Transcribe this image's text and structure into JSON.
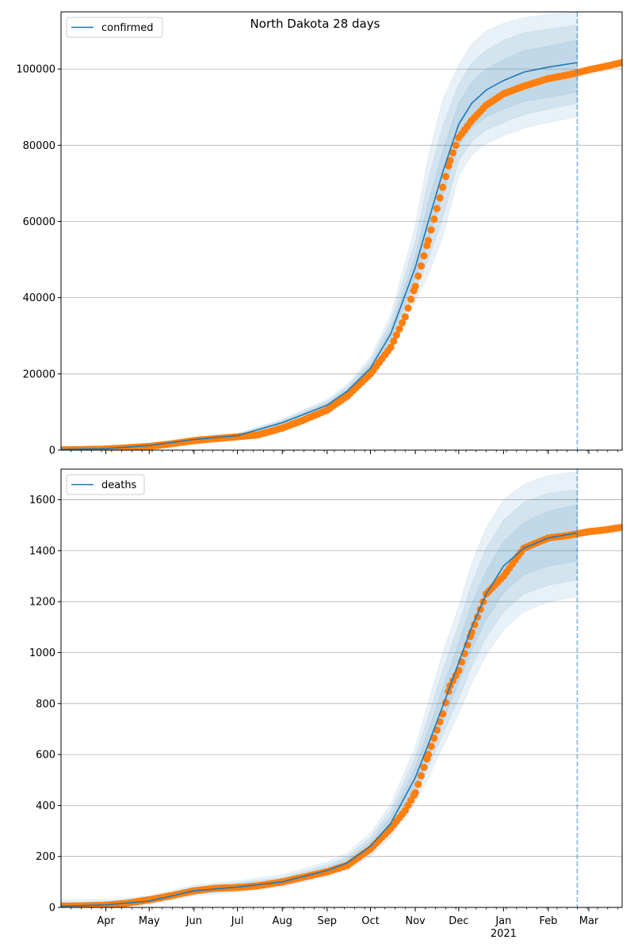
{
  "figure": {
    "title": "North Dakota 28 days"
  },
  "colors": {
    "model_line": "#1f77b4",
    "observed_points": "#ff7f0e",
    "band": "#1f77b4",
    "forecast_marker": "#1f77b4",
    "grid": "#b0b0b0"
  },
  "chart_data": [
    {
      "type": "line",
      "legend": [
        "confirmed"
      ],
      "legend_position": "upper-left",
      "grid": "y",
      "xlim": [
        "2020-03-01",
        "2021-03-24"
      ],
      "ylim": [
        0,
        115000
      ],
      "yticks": [
        0,
        20000,
        40000,
        60000,
        80000,
        100000
      ],
      "ytick_labels": [
        "0",
        "20000",
        "40000",
        "60000",
        "80000",
        "100000"
      ],
      "forecast_start": "2021-02-21",
      "series": [
        {
          "name": "confirmed",
          "kind": "model",
          "x": [
            "2020-03-01",
            "2020-04-01",
            "2020-05-01",
            "2020-06-01",
            "2020-07-01",
            "2020-08-01",
            "2020-09-01",
            "2020-09-15",
            "2020-10-01",
            "2020-10-15",
            "2020-11-01",
            "2020-11-10",
            "2020-11-20",
            "2020-12-01",
            "2020-12-10",
            "2020-12-20",
            "2021-01-01",
            "2021-01-15",
            "2021-02-01",
            "2021-02-21"
          ],
          "y": [
            200,
            400,
            1200,
            2800,
            3800,
            7200,
            11800,
            15500,
            21500,
            30500,
            48000,
            60000,
            73000,
            85500,
            91000,
            94500,
            97000,
            99200,
            100500,
            101700
          ],
          "bands": {
            "inner": {
              "lower": [
                150,
                350,
                1100,
                2600,
                3600,
                6900,
                11300,
                14900,
                20600,
                29000,
                45000,
                55000,
                67000,
                80000,
                84500,
                87500,
                89500,
                91500,
                92500,
                94000
              ],
              "upper": [
                250,
                450,
                1300,
                3000,
                4000,
                7500,
                12300,
                16100,
                22500,
                32000,
                51000,
                65000,
                78500,
                91000,
                96500,
                100000,
                102500,
                104800,
                106000,
                107600
              ]
            },
            "middle": {
              "lower": [
                100,
                300,
                1000,
                2400,
                3400,
                6600,
                10800,
                14300,
                19800,
                27500,
                42000,
                50000,
                61000,
                76000,
                81000,
                84000,
                86000,
                88000,
                89500,
                91000
              ],
              "upper": [
                300,
                500,
                1400,
                3200,
                4200,
                7800,
                12800,
                16700,
                23400,
                33800,
                55000,
                71000,
                85000,
                96000,
                101500,
                105000,
                107500,
                109500,
                110500,
                111500
              ]
            },
            "outer": {
              "lower": [
                50,
                250,
                900,
                2200,
                3200,
                6300,
                10300,
                13700,
                19000,
                26000,
                39000,
                46000,
                56000,
                72000,
                77500,
                80500,
                82500,
                84500,
                86000,
                87500
              ],
              "upper": [
                400,
                600,
                1500,
                3400,
                4400,
                8100,
                13300,
                17300,
                24400,
                35500,
                59000,
                77000,
                92000,
                101000,
                106500,
                110000,
                112000,
                113500,
                114300,
                115000
              ]
            }
          }
        },
        {
          "name": "",
          "kind": "observed",
          "x": [
            "2020-03-01",
            "2020-03-15",
            "2020-04-01",
            "2020-04-15",
            "2020-05-01",
            "2020-05-15",
            "2020-06-01",
            "2020-06-15",
            "2020-07-01",
            "2020-07-15",
            "2020-08-01",
            "2020-08-15",
            "2020-09-01",
            "2020-09-15",
            "2020-10-01",
            "2020-10-15",
            "2020-10-25",
            "2020-11-01",
            "2020-11-10",
            "2020-11-20",
            "2020-11-25",
            "2020-12-01",
            "2020-12-10",
            "2020-12-20",
            "2021-01-01",
            "2021-01-15",
            "2021-02-01",
            "2021-02-15",
            "2021-03-01",
            "2021-03-10",
            "2021-03-24"
          ],
          "y": [
            100,
            150,
            300,
            600,
            1000,
            1600,
            2500,
            3000,
            3500,
            4000,
            5800,
            7800,
            10500,
            14200,
            20000,
            27000,
            35000,
            43000,
            55000,
            69000,
            76000,
            82000,
            86500,
            90500,
            93500,
            95500,
            97500,
            98500,
            99800,
            100500,
            101700
          ]
        }
      ]
    },
    {
      "type": "line",
      "legend": [
        "deaths"
      ],
      "legend_position": "upper-left",
      "grid": "y",
      "xlim": [
        "2020-03-01",
        "2021-03-24"
      ],
      "ylim": [
        0,
        1720
      ],
      "yticks": [
        0,
        200,
        400,
        600,
        800,
        1000,
        1200,
        1400,
        1600
      ],
      "ytick_labels": [
        "0",
        "200",
        "400",
        "600",
        "800",
        "1000",
        "1200",
        "1400",
        "1600"
      ],
      "xtick_labels": [
        "Apr",
        "May",
        "Jun",
        "Jul",
        "Aug",
        "Sep",
        "Oct",
        "Nov",
        "Dec",
        "Jan",
        "Feb",
        "Mar"
      ],
      "xtick_dates": [
        "2020-04-01",
        "2020-05-01",
        "2020-06-01",
        "2020-07-01",
        "2020-08-01",
        "2020-09-01",
        "2020-10-01",
        "2020-11-01",
        "2020-12-01",
        "2021-01-01",
        "2021-02-01",
        "2021-03-01"
      ],
      "x_year_label": "2021",
      "forecast_start": "2021-02-21",
      "series": [
        {
          "name": "deaths",
          "kind": "model",
          "x": [
            "2020-03-01",
            "2020-04-01",
            "2020-05-01",
            "2020-06-01",
            "2020-07-01",
            "2020-08-01",
            "2020-09-01",
            "2020-09-15",
            "2020-10-01",
            "2020-10-15",
            "2020-11-01",
            "2020-11-10",
            "2020-11-20",
            "2020-12-01",
            "2020-12-10",
            "2020-12-20",
            "2021-01-01",
            "2021-01-15",
            "2021-02-01",
            "2021-02-21"
          ],
          "y": [
            5,
            10,
            25,
            65,
            80,
            100,
            145,
            175,
            240,
            330,
            510,
            640,
            790,
            960,
            1100,
            1230,
            1340,
            1410,
            1450,
            1470
          ],
          "bands": {
            "inner": {
              "lower": [
                2,
                6,
                20,
                58,
                72,
                92,
                135,
                165,
                225,
                310,
                470,
                590,
                730,
                880,
                1010,
                1130,
                1235,
                1305,
                1340,
                1360
              ],
              "upper": [
                12,
                15,
                32,
                72,
                88,
                108,
                155,
                188,
                258,
                355,
                550,
                695,
                860,
                1040,
                1190,
                1320,
                1435,
                1510,
                1555,
                1580
              ]
            },
            "middle": {
              "lower": [
                0,
                3,
                16,
                52,
                66,
                86,
                128,
                156,
                213,
                292,
                440,
                550,
                680,
                820,
                945,
                1060,
                1160,
                1230,
                1265,
                1285
              ],
              "upper": [
                20,
                22,
                38,
                80,
                96,
                118,
                166,
                200,
                275,
                380,
                590,
                750,
                930,
                1110,
                1270,
                1410,
                1520,
                1590,
                1625,
                1640
              ]
            },
            "outer": {
              "lower": [
                0,
                1,
                12,
                46,
                60,
                80,
                120,
                148,
                200,
                275,
                410,
                510,
                630,
                760,
                880,
                990,
                1090,
                1160,
                1200,
                1220
              ],
              "upper": [
                30,
                30,
                45,
                88,
                104,
                128,
                178,
                214,
                293,
                405,
                630,
                805,
                1000,
                1180,
                1350,
                1490,
                1600,
                1660,
                1695,
                1710
              ]
            }
          }
        },
        {
          "name": "",
          "kind": "observed",
          "x": [
            "2020-03-01",
            "2020-03-15",
            "2020-04-01",
            "2020-04-15",
            "2020-05-01",
            "2020-05-15",
            "2020-06-01",
            "2020-06-15",
            "2020-07-01",
            "2020-07-15",
            "2020-08-01",
            "2020-08-15",
            "2020-09-01",
            "2020-09-15",
            "2020-10-01",
            "2020-10-15",
            "2020-10-25",
            "2020-11-01",
            "2020-11-10",
            "2020-11-20",
            "2020-11-25",
            "2020-12-01",
            "2020-12-10",
            "2020-12-20",
            "2021-01-01",
            "2021-01-15",
            "2021-02-01",
            "2021-02-15",
            "2021-03-01",
            "2021-03-10",
            "2021-03-24"
          ],
          "y": [
            5,
            6,
            9,
            16,
            30,
            45,
            65,
            75,
            78,
            85,
            100,
            118,
            140,
            165,
            230,
            310,
            380,
            450,
            600,
            760,
            870,
            930,
            1080,
            1230,
            1300,
            1410,
            1450,
            1460,
            1475,
            1480,
            1492
          ]
        }
      ]
    }
  ]
}
